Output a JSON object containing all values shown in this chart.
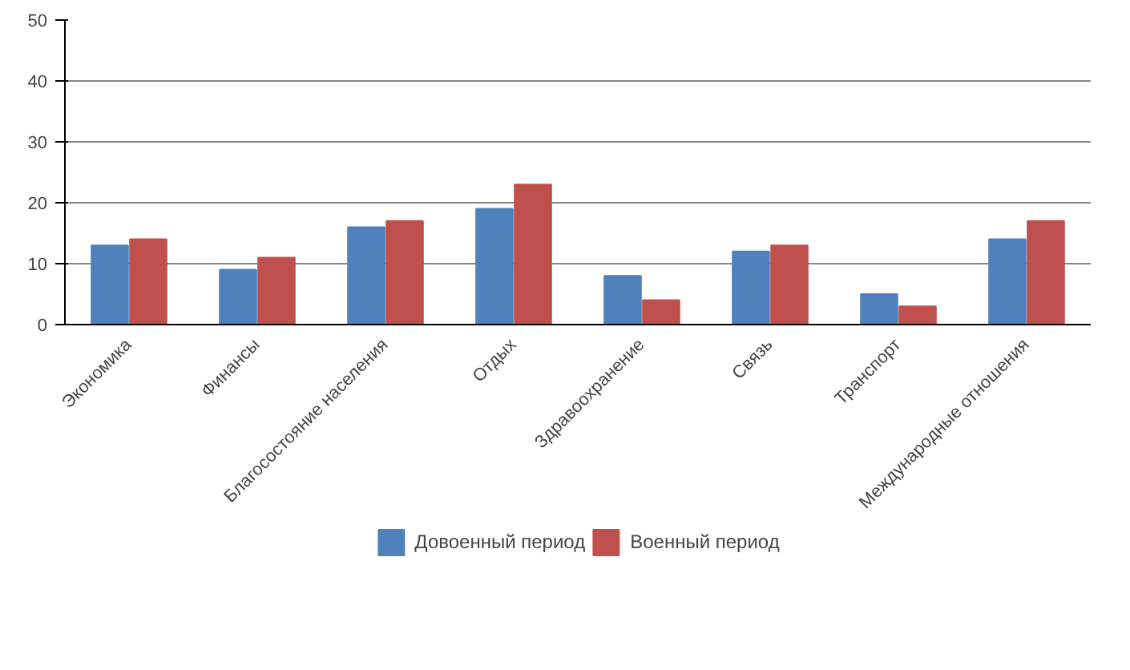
{
  "chart_data": {
    "type": "bar",
    "categories": [
      "Экономика",
      "Финансы",
      "Благосостояние населения",
      "Отдых",
      "Здравоохранение",
      "Связь",
      "Транспорт",
      "Международные отношения"
    ],
    "series": [
      {
        "name": "Довоенный период",
        "color": "#4f81bd",
        "values": [
          13,
          9,
          16,
          19,
          8,
          12,
          5,
          14
        ]
      },
      {
        "name": "Военный период",
        "color": "#c0504d",
        "values": [
          14,
          11,
          17,
          23,
          4,
          13,
          3,
          17
        ]
      }
    ],
    "ylim": [
      0,
      50
    ],
    "yticks": [
      0,
      10,
      20,
      30,
      40,
      50
    ],
    "grid": "y",
    "legend": "bottom"
  }
}
